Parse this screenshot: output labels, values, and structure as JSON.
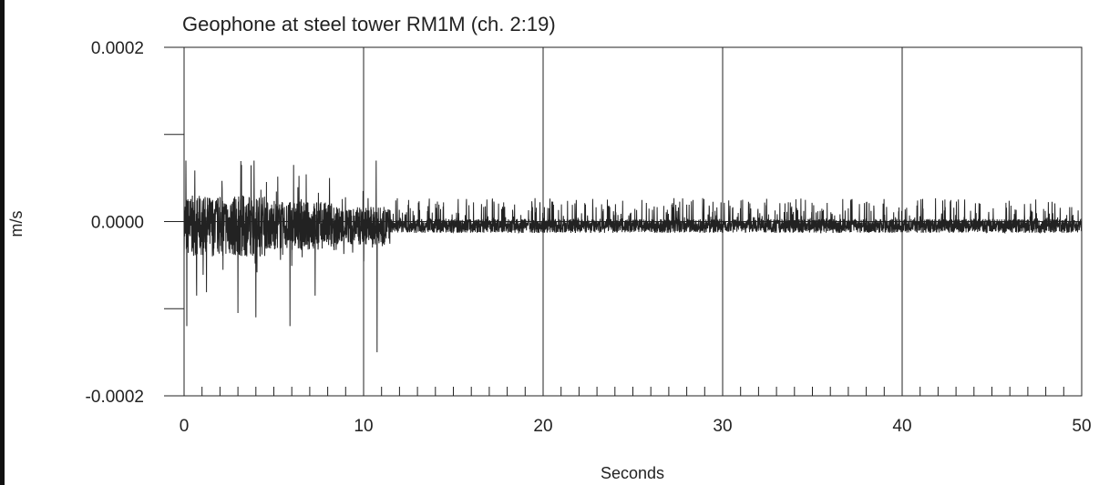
{
  "chart_data": {
    "type": "line",
    "title": "Geophone at steel tower RM1M (ch. 2:19)",
    "xlabel": "Seconds",
    "ylabel": "m/s",
    "xlim": [
      0,
      50
    ],
    "ylim": [
      -0.0002,
      0.0002
    ],
    "x_ticks": [
      0,
      10,
      20,
      30,
      40,
      50
    ],
    "x_tick_labels": [
      "0",
      "10",
      "20",
      "30",
      "40",
      "50"
    ],
    "y_ticks": [
      -0.0002,
      0.0,
      0.0002
    ],
    "y_tick_labels": [
      "-0.0002",
      "0.0000",
      "0.0002"
    ],
    "x_minor_tick_step": 1,
    "y_minor_tick_step": 0.0001,
    "grid": "vertical at major x ticks",
    "series": [
      {
        "color": "#222222",
        "baseline": -5e-06,
        "peaks": [
          {
            "x": 0.1,
            "y": 7e-05
          },
          {
            "x": 0.15,
            "y": -0.00012
          },
          {
            "x": 0.7,
            "y": -8.5e-05
          },
          {
            "x": 3.0,
            "y": -0.000105
          },
          {
            "x": 3.2,
            "y": 6.5e-05
          },
          {
            "x": 3.9,
            "y": 7e-05
          },
          {
            "x": 4.0,
            "y": -0.00011
          },
          {
            "x": 5.9,
            "y": -0.00012
          },
          {
            "x": 6.1,
            "y": 6.5e-05
          },
          {
            "x": 7.3,
            "y": -8.5e-05
          },
          {
            "x": 8.1,
            "y": 5e-05
          },
          {
            "x": 10.7,
            "y": 7e-05
          },
          {
            "x": 10.75,
            "y": -0.00015
          }
        ]
      }
    ]
  }
}
